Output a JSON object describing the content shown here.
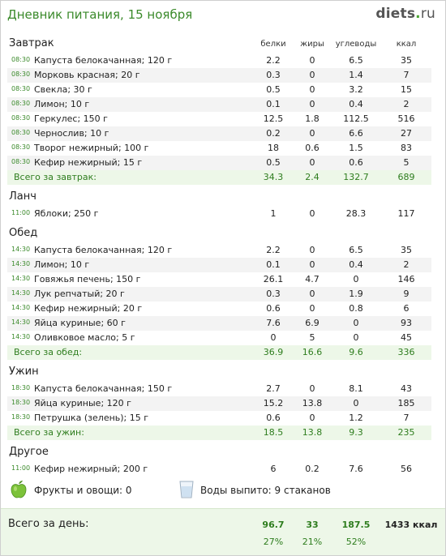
{
  "header": {
    "title": "Дневник питания, 15 ноября",
    "logo_main": "diets",
    "logo_dot": ".",
    "logo_tld": "ru"
  },
  "columns": {
    "protein": "белки",
    "fat": "жиры",
    "carbs": "углеводы",
    "kcal": "ккал"
  },
  "sections": [
    {
      "title": "Завтрак",
      "rows": [
        {
          "time": "08:30",
          "name": "Капуста белокачанная; 120 г",
          "protein": "2.2",
          "fat": "0",
          "carbs": "6.5",
          "kcal": "35"
        },
        {
          "time": "08:30",
          "name": "Морковь красная; 20 г",
          "protein": "0.3",
          "fat": "0",
          "carbs": "1.4",
          "kcal": "7"
        },
        {
          "time": "08:30",
          "name": "Свекла; 30 г",
          "protein": "0.5",
          "fat": "0",
          "carbs": "3.2",
          "kcal": "15"
        },
        {
          "time": "08:30",
          "name": "Лимон; 10 г",
          "protein": "0.1",
          "fat": "0",
          "carbs": "0.4",
          "kcal": "2"
        },
        {
          "time": "08:30",
          "name": "Геркулес; 150 г",
          "protein": "12.5",
          "fat": "1.8",
          "carbs": "112.5",
          "kcal": "516"
        },
        {
          "time": "08:30",
          "name": "Чернослив; 10 г",
          "protein": "0.2",
          "fat": "0",
          "carbs": "6.6",
          "kcal": "27"
        },
        {
          "time": "08:30",
          "name": "Творог нежирный; 100 г",
          "protein": "18",
          "fat": "0.6",
          "carbs": "1.5",
          "kcal": "83"
        },
        {
          "time": "08:30",
          "name": "Кефир нежирный; 15 г",
          "protein": "0.5",
          "fat": "0",
          "carbs": "0.6",
          "kcal": "5"
        }
      ],
      "total": {
        "name": "Всего за завтрак:",
        "protein": "34.3",
        "fat": "2.4",
        "carbs": "132.7",
        "kcal": "689"
      }
    },
    {
      "title": "Ланч",
      "rows": [
        {
          "time": "11:00",
          "name": "Яблоки; 250 г",
          "protein": "1",
          "fat": "0",
          "carbs": "28.3",
          "kcal": "117"
        }
      ]
    },
    {
      "title": "Обед",
      "rows": [
        {
          "time": "14:30",
          "name": "Капуста белокачанная; 120 г",
          "protein": "2.2",
          "fat": "0",
          "carbs": "6.5",
          "kcal": "35"
        },
        {
          "time": "14:30",
          "name": "Лимон; 10 г",
          "protein": "0.1",
          "fat": "0",
          "carbs": "0.4",
          "kcal": "2"
        },
        {
          "time": "14:30",
          "name": "Говяжья печень; 150 г",
          "protein": "26.1",
          "fat": "4.7",
          "carbs": "0",
          "kcal": "146"
        },
        {
          "time": "14:30",
          "name": "Лук репчатый; 20 г",
          "protein": "0.3",
          "fat": "0",
          "carbs": "1.9",
          "kcal": "9"
        },
        {
          "time": "14:30",
          "name": "Кефир нежирный; 20 г",
          "protein": "0.6",
          "fat": "0",
          "carbs": "0.8",
          "kcal": "6"
        },
        {
          "time": "14:30",
          "name": "Яйца куриные; 60 г",
          "protein": "7.6",
          "fat": "6.9",
          "carbs": "0",
          "kcal": "93"
        },
        {
          "time": "14:30",
          "name": "Оливковое масло; 5 г",
          "protein": "0",
          "fat": "5",
          "carbs": "0",
          "kcal": "45"
        }
      ],
      "total": {
        "name": "Всего за обед:",
        "protein": "36.9",
        "fat": "16.6",
        "carbs": "9.6",
        "kcal": "336"
      }
    },
    {
      "title": "Ужин",
      "rows": [
        {
          "time": "18:30",
          "name": "Капуста белокачанная; 150 г",
          "protein": "2.7",
          "fat": "0",
          "carbs": "8.1",
          "kcal": "43"
        },
        {
          "time": "18:30",
          "name": "Яйца куриные; 120 г",
          "protein": "15.2",
          "fat": "13.8",
          "carbs": "0",
          "kcal": "185"
        },
        {
          "time": "18:30",
          "name": "Петрушка (зелень); 15 г",
          "protein": "0.6",
          "fat": "0",
          "carbs": "1.2",
          "kcal": "7"
        }
      ],
      "total": {
        "name": "Всего за ужин:",
        "protein": "18.5",
        "fat": "13.8",
        "carbs": "9.3",
        "kcal": "235"
      }
    },
    {
      "title": "Другое",
      "rows": [
        {
          "time": "11:00",
          "name": "Кефир нежирный; 200 г",
          "protein": "6",
          "fat": "0.2",
          "carbs": "7.6",
          "kcal": "56"
        }
      ]
    }
  ],
  "extras": {
    "fruit_label": "Фрукты и овощи: 0",
    "water_label": "Воды выпито: 9 стаканов",
    "fruit_icon": "green-apple-icon",
    "water_icon": "water-glass-icon"
  },
  "day_total": {
    "label": "Всего за день:",
    "protein": "96.7",
    "fat": "33",
    "carbs": "187.5",
    "kcal": "1433 ккал",
    "protein_pct": "27%",
    "fat_pct": "21%",
    "carbs_pct": "52%"
  },
  "colors": {
    "accent_green": "#3b8a2b",
    "total_bg": "#edf7e8",
    "alt_row_bg": "#f3f3f3"
  }
}
